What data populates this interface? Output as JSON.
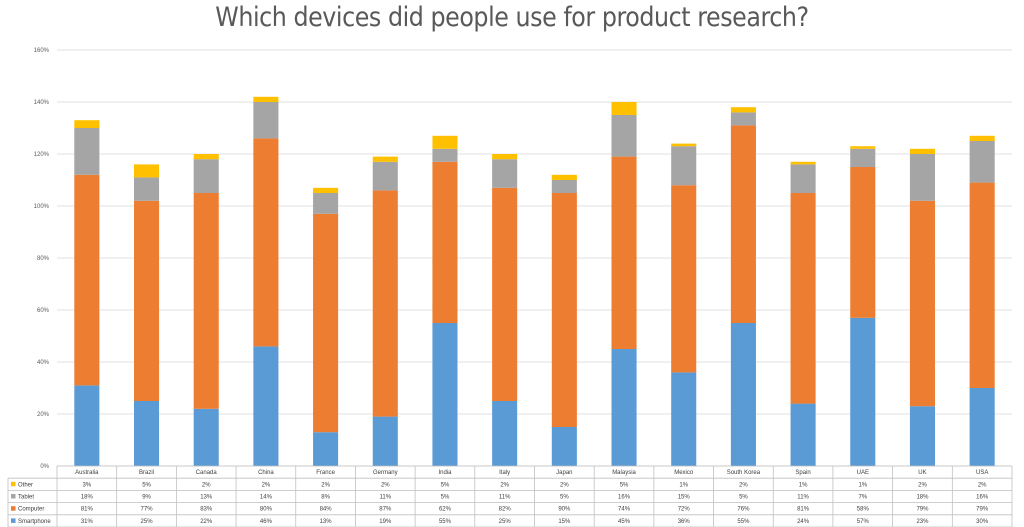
{
  "chart_data": {
    "type": "bar",
    "stacked": true,
    "title": "Which devices did people use for product research?",
    "ylim": [
      0,
      160
    ],
    "yticks": [
      "0%",
      "20%",
      "40%",
      "60%",
      "80%",
      "100%",
      "120%",
      "140%",
      "160%"
    ],
    "grid": true,
    "legend_placement": "data-table-left",
    "categories": [
      "Australia",
      "Brazil",
      "Canada",
      "China",
      "France",
      "Germany",
      "India",
      "Italy",
      "Japan",
      "Malaysia",
      "Mexico",
      "South Korea",
      "Spain",
      "UAE",
      "UK",
      "USA"
    ],
    "series": [
      {
        "name": "Smartphone",
        "color": "#5B9BD5",
        "values": [
          31,
          25,
          22,
          46,
          13,
          19,
          55,
          25,
          15,
          45,
          36,
          55,
          24,
          57,
          23,
          30
        ],
        "labels": [
          "31%",
          "25%",
          "22%",
          "46%",
          "13%",
          "19%",
          "55%",
          "25%",
          "15%",
          "45%",
          "36%",
          "55%",
          "24%",
          "57%",
          "23%",
          "30%"
        ]
      },
      {
        "name": "Computer",
        "color": "#ED7D31",
        "values": [
          81,
          77,
          83,
          80,
          84,
          87,
          62,
          82,
          90,
          74,
          72,
          76,
          81,
          58,
          79,
          79
        ],
        "labels": [
          "81%",
          "77%",
          "83%",
          "80%",
          "84%",
          "87%",
          "62%",
          "82%",
          "90%",
          "74%",
          "72%",
          "76%",
          "81%",
          "58%",
          "79%",
          "79%"
        ]
      },
      {
        "name": "Tablet",
        "color": "#A5A5A5",
        "values": [
          18,
          9,
          13,
          14,
          8,
          11,
          5,
          11,
          5,
          16,
          15,
          5,
          11,
          7,
          18,
          16
        ],
        "labels": [
          "18%",
          "9%",
          "13%",
          "14%",
          "8%",
          "11%",
          "5%",
          "11%",
          "5%",
          "16%",
          "15%",
          "5%",
          "11%",
          "7%",
          "18%",
          "16%"
        ]
      },
      {
        "name": "Other",
        "color": "#FFC000",
        "values": [
          3,
          5,
          2,
          2,
          2,
          2,
          5,
          2,
          2,
          5,
          1,
          2,
          1,
          1,
          2,
          2
        ],
        "labels": [
          "3%",
          "5%",
          "2%",
          "2%",
          "2%",
          "2%",
          "5%",
          "2%",
          "2%",
          "5%",
          "1%",
          "2%",
          "1%",
          "1%",
          "2%",
          "2%"
        ]
      }
    ],
    "table_row_order": [
      "Other",
      "Tablet",
      "Computer",
      "Smartphone"
    ]
  }
}
